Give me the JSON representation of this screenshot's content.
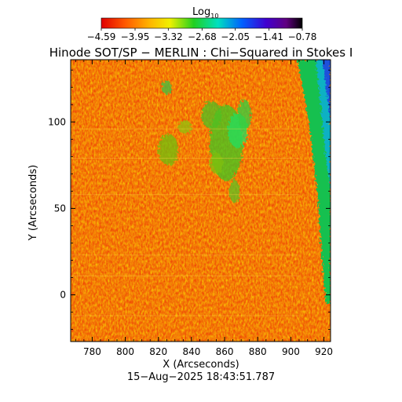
{
  "colorbar": {
    "title_main": "Log",
    "title_sub": "10",
    "tick_labels": [
      "−4.59",
      "−3.95",
      "−3.32",
      "−2.68",
      "−2.05",
      "−1.41",
      "−0.78"
    ],
    "tick_values": [
      -4.59,
      -3.95,
      -3.32,
      -2.68,
      -2.05,
      -1.41,
      -0.78
    ],
    "range": [
      -4.59,
      -0.78
    ],
    "colormap": "rainbow (red - orange - yellow - green - cyan - blue - violet - black)"
  },
  "chart_data": {
    "type": "heatmap",
    "title": "Hinode SOT/SP − MERLIN : Chi−Squared in Stokes I",
    "xlabel": "X (Arcseconds)",
    "ylabel": "Y (Arcseconds)",
    "xlim": [
      767,
      924
    ],
    "ylim": [
      -27,
      136
    ],
    "x_ticks": [
      780,
      800,
      820,
      840,
      860,
      880,
      900,
      920
    ],
    "x_tick_labels": [
      "780",
      "800",
      "820",
      "840",
      "860",
      "880",
      "900",
      "920"
    ],
    "y_ticks": [
      0,
      50,
      100
    ],
    "y_tick_labels": [
      "0",
      "50",
      "100"
    ],
    "value_range_log10": [
      -4.59,
      -0.78
    ],
    "background_value_log10": -4.0,
    "features": [
      {
        "x_range": [
          818,
          875
        ],
        "y_range": [
          50,
          118
        ],
        "approx_value_log10": -3.0
      },
      {
        "x_range": [
          905,
          924
        ],
        "y_range": [
          -5,
          136
        ],
        "approx_value_log10": -2.3
      }
    ]
  },
  "timestamp": "15−Aug−2025 18:43:51.787"
}
